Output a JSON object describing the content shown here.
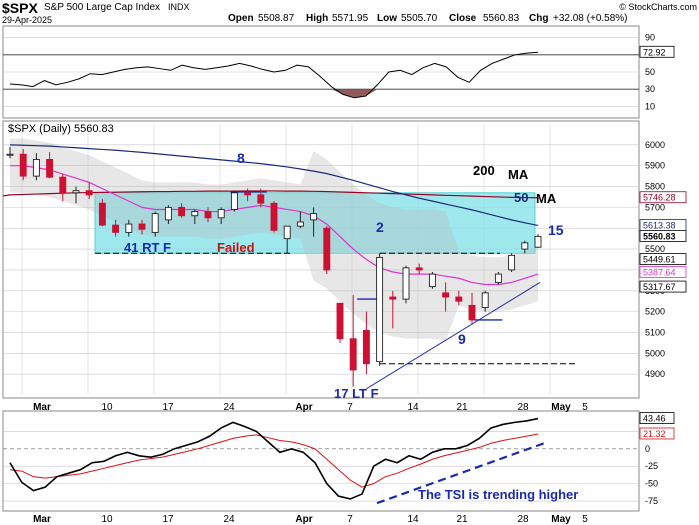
{
  "header": {
    "symbol": "$SPX",
    "name": "S&P 500 Large Cap Index",
    "exchange": "INDX",
    "date": "29-Apr-2025",
    "open_label": "Open",
    "open": "5508.87",
    "high_label": "High",
    "high": "5571.95",
    "low_label": "Low",
    "low": "5505.70",
    "close_label": "Close",
    "close": "5560.83",
    "chg_label": "Chg",
    "chg": "+32.08 (+0.58%)",
    "watermark": "© StockCharts.com"
  },
  "legend": {
    "main": "$SPX (Daily) 5560.83"
  },
  "x_axis": {
    "top_labels": [
      "Mar",
      "10",
      "17",
      "24",
      "Apr",
      "7",
      "14",
      "21",
      "28",
      "May",
      "5"
    ],
    "bottom_labels": [
      "Mar",
      "10",
      "17",
      "24",
      "Apr",
      "7",
      "14",
      "21",
      "28",
      "May",
      "5"
    ]
  },
  "chart_data": [
    {
      "type": "line",
      "panel": "RSI (top indicator)",
      "ylim": [
        0,
        100
      ],
      "yticks": [
        10,
        30,
        50,
        70,
        90
      ],
      "reference_lines": [
        70,
        30
      ],
      "current_value_label": "72.92",
      "series": [
        {
          "values": [
            36,
            35,
            33,
            40,
            35,
            38,
            42,
            48,
            47,
            50,
            53,
            55,
            56,
            54,
            52,
            58,
            55,
            53,
            55,
            57,
            60,
            57,
            53,
            50,
            52,
            58,
            56,
            45,
            33,
            24,
            20,
            22,
            35,
            50,
            52,
            47,
            55,
            60,
            56,
            44,
            38,
            52,
            60,
            65,
            70,
            72,
            72.92
          ]
        }
      ]
    },
    {
      "type": "candlestick",
      "panel": "Price (daily)",
      "ylim": [
        4800,
        6100
      ],
      "yticks": [
        4900,
        5000,
        5100,
        5200,
        5300,
        5400,
        5500,
        5600,
        5700,
        5800,
        5900,
        6000
      ],
      "value_labels": [
        "5746.28",
        "5613.38",
        "5560.83",
        "5449.61",
        "5387.64",
        "5317.67"
      ],
      "candles": [
        {
          "o": 5950,
          "h": 5990,
          "l": 5935,
          "c": 5955
        },
        {
          "o": 5955,
          "h": 5980,
          "l": 5830,
          "c": 5850
        },
        {
          "o": 5850,
          "h": 5960,
          "l": 5830,
          "c": 5930
        },
        {
          "o": 5930,
          "h": 5965,
          "l": 5840,
          "c": 5845
        },
        {
          "o": 5845,
          "h": 5860,
          "l": 5730,
          "c": 5770
        },
        {
          "o": 5770,
          "h": 5800,
          "l": 5720,
          "c": 5780
        },
        {
          "o": 5780,
          "h": 5820,
          "l": 5740,
          "c": 5760
        },
        {
          "o": 5720,
          "h": 5740,
          "l": 5610,
          "c": 5615
        },
        {
          "o": 5615,
          "h": 5640,
          "l": 5560,
          "c": 5580
        },
        {
          "o": 5580,
          "h": 5640,
          "l": 5560,
          "c": 5620
        },
        {
          "o": 5620,
          "h": 5640,
          "l": 5570,
          "c": 5595
        },
        {
          "o": 5580,
          "h": 5680,
          "l": 5560,
          "c": 5670
        },
        {
          "o": 5640,
          "h": 5710,
          "l": 5620,
          "c": 5700
        },
        {
          "o": 5700,
          "h": 5720,
          "l": 5650,
          "c": 5660
        },
        {
          "o": 5660,
          "h": 5690,
          "l": 5620,
          "c": 5680
        },
        {
          "o": 5680,
          "h": 5700,
          "l": 5630,
          "c": 5650
        },
        {
          "o": 5650,
          "h": 5700,
          "l": 5620,
          "c": 5690
        },
        {
          "o": 5690,
          "h": 5780,
          "l": 5680,
          "c": 5770
        },
        {
          "o": 5770,
          "h": 5790,
          "l": 5730,
          "c": 5760
        },
        {
          "o": 5760,
          "h": 5790,
          "l": 5700,
          "c": 5720
        },
        {
          "o": 5720,
          "h": 5730,
          "l": 5580,
          "c": 5590
        },
        {
          "o": 5550,
          "h": 5600,
          "l": 5480,
          "c": 5610
        },
        {
          "o": 5610,
          "h": 5680,
          "l": 5600,
          "c": 5630
        },
        {
          "o": 5640,
          "h": 5700,
          "l": 5560,
          "c": 5670
        },
        {
          "o": 5600,
          "h": 5610,
          "l": 5380,
          "c": 5400
        },
        {
          "o": 5240,
          "h": 5240,
          "l": 5050,
          "c": 5070
        },
        {
          "o": 5070,
          "h": 5280,
          "l": 4840,
          "c": 4920
        },
        {
          "o": 5110,
          "h": 5200,
          "l": 4900,
          "c": 4950
        },
        {
          "o": 4960,
          "h": 5480,
          "l": 4940,
          "c": 5460
        },
        {
          "o": 5270,
          "h": 5300,
          "l": 5120,
          "c": 5260
        },
        {
          "o": 5260,
          "h": 5420,
          "l": 5240,
          "c": 5410
        },
        {
          "o": 5410,
          "h": 5430,
          "l": 5380,
          "c": 5400
        },
        {
          "o": 5320,
          "h": 5390,
          "l": 5310,
          "c": 5380
        },
        {
          "o": 5290,
          "h": 5340,
          "l": 5200,
          "c": 5270
        },
        {
          "o": 5270,
          "h": 5300,
          "l": 5230,
          "c": 5250
        },
        {
          "o": 5230,
          "h": 5290,
          "l": 5140,
          "c": 5160
        },
        {
          "o": 5220,
          "h": 5300,
          "l": 5200,
          "c": 5290
        },
        {
          "o": 5340,
          "h": 5390,
          "l": 5330,
          "c": 5380
        },
        {
          "o": 5400,
          "h": 5480,
          "l": 5390,
          "c": 5470
        },
        {
          "o": 5500,
          "h": 5540,
          "l": 5480,
          "c": 5530
        },
        {
          "o": 5508.87,
          "h": 5571.95,
          "l": 5505.7,
          "c": 5560.83
        }
      ],
      "moving_averages": [
        {
          "name": "200 MA",
          "values": [
            5760,
            5762,
            5764,
            5766,
            5768,
            5770,
            5771,
            5772,
            5773,
            5774,
            5775,
            5776,
            5776,
            5777,
            5777,
            5778,
            5778,
            5778,
            5779,
            5779,
            5779,
            5778,
            5778,
            5777,
            5776,
            5774,
            5772,
            5770,
            5768,
            5766,
            5764,
            5762,
            5760,
            5758,
            5756,
            5754,
            5752,
            5750,
            5748,
            5747,
            5746.28
          ]
        },
        {
          "name": "50 MA",
          "values": [
            6000,
            5998,
            5996,
            5994,
            5990,
            5986,
            5982,
            5978,
            5974,
            5969,
            5964,
            5958,
            5952,
            5946,
            5940,
            5934,
            5928,
            5922,
            5916,
            5910,
            5902,
            5894,
            5884,
            5874,
            5862,
            5846,
            5830,
            5812,
            5794,
            5776,
            5760,
            5744,
            5730,
            5716,
            5702,
            5688,
            5672,
            5656,
            5640,
            5626,
            5613.38
          ]
        }
      ],
      "annotations": [
        "8",
        "41 RT F",
        "Failed",
        "2",
        "200",
        "MA",
        "50",
        "MA",
        "15",
        "9",
        "17 LT F"
      ]
    },
    {
      "type": "line",
      "panel": "TSI (bottom indicator)",
      "ylim": [
        -85,
        50
      ],
      "yticks": [
        -75,
        -50,
        -25,
        0,
        25
      ],
      "current_value_labels": [
        "43.46",
        "21.32"
      ],
      "annotation": "The TSI is trending higher",
      "series": [
        {
          "values": [
            -20,
            -48,
            -60,
            -55,
            -40,
            -35,
            -30,
            -20,
            -18,
            -10,
            -5,
            -10,
            -12,
            -8,
            0,
            5,
            10,
            18,
            30,
            38,
            32,
            25,
            10,
            -5,
            0,
            -5,
            -20,
            -50,
            -68,
            -72,
            -65,
            -25,
            -15,
            -20,
            -10,
            -15,
            -5,
            0,
            0,
            5,
            15,
            30,
            35,
            38,
            40,
            43.46
          ]
        },
        {
          "values": [
            -30,
            -32,
            -40,
            -42,
            -40,
            -38,
            -36,
            -32,
            -28,
            -24,
            -20,
            -16,
            -14,
            -12,
            -8,
            -4,
            0,
            5,
            10,
            15,
            18,
            20,
            16,
            12,
            10,
            6,
            0,
            -15,
            -30,
            -45,
            -55,
            -50,
            -40,
            -35,
            -28,
            -22,
            -15,
            -10,
            -6,
            -2,
            2,
            8,
            12,
            15,
            18,
            21.32
          ]
        }
      ]
    }
  ],
  "colors": {
    "grid": "#c8c8c8",
    "up": "#222222",
    "down": "#cc1133",
    "ma200": "#990022",
    "ma50": "#1a2a7a",
    "ma20": "#dd33cc",
    "box": "#7fe0e8",
    "blue_note": "#1a2ab0",
    "red_note": "#cc1111",
    "rsi_fill": "#8e5a5a"
  }
}
